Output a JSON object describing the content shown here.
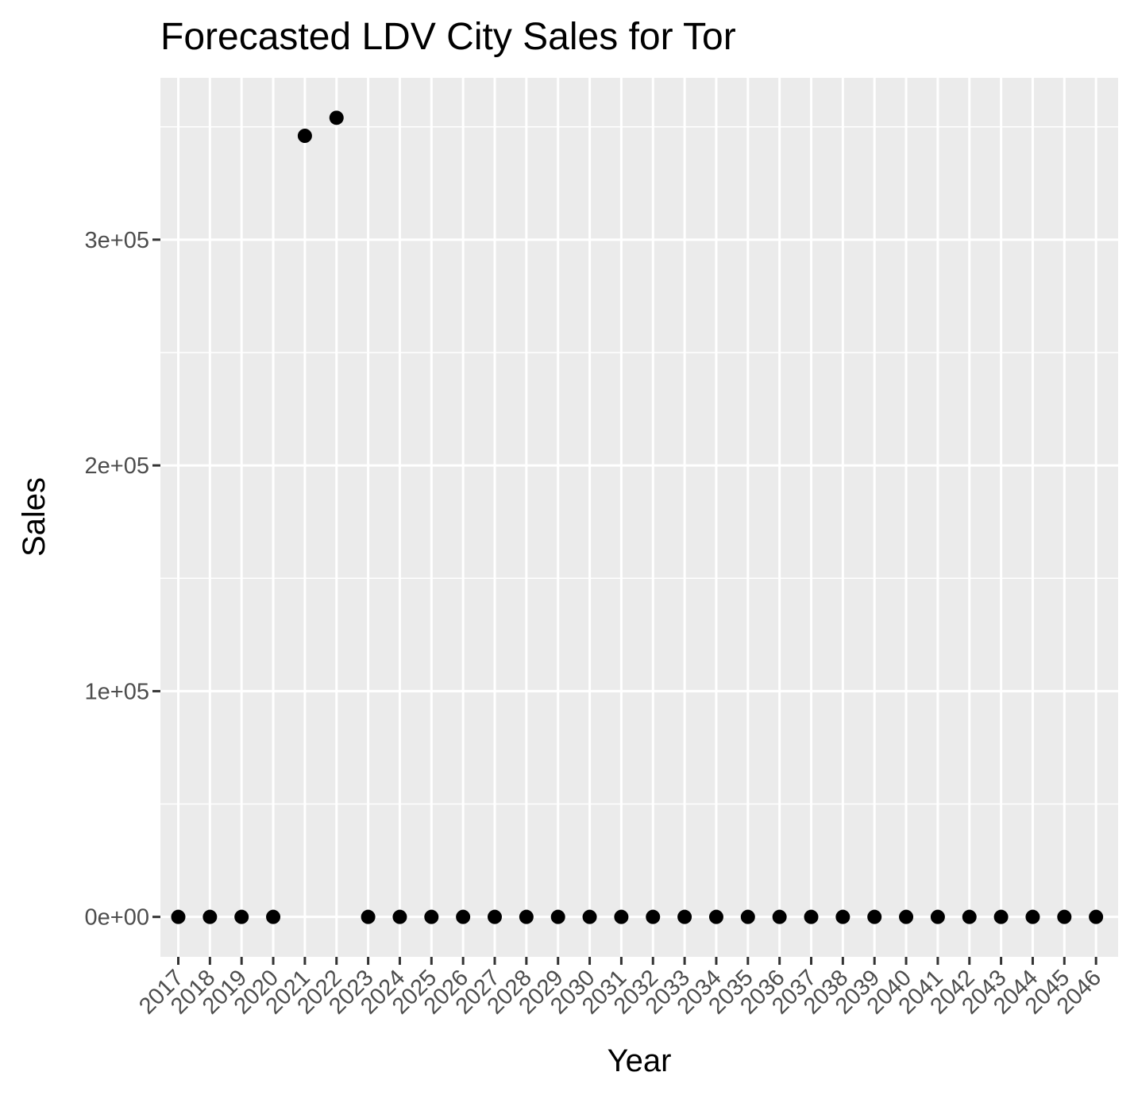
{
  "chart_data": {
    "type": "scatter",
    "title": "Forecasted LDV City Sales for Tor",
    "xlabel": "Year",
    "ylabel": "Sales",
    "x": [
      "2017",
      "2018",
      "2019",
      "2020",
      "2021",
      "2022",
      "2023",
      "2024",
      "2025",
      "2026",
      "2027",
      "2028",
      "2029",
      "2030",
      "2031",
      "2032",
      "2033",
      "2034",
      "2035",
      "2036",
      "2037",
      "2038",
      "2039",
      "2040",
      "2041",
      "2042",
      "2043",
      "2044",
      "2045",
      "2046"
    ],
    "y": [
      0,
      0,
      0,
      0,
      346000,
      354000,
      0,
      0,
      0,
      0,
      0,
      0,
      0,
      0,
      0,
      0,
      0,
      0,
      0,
      0,
      0,
      0,
      0,
      0,
      0,
      0,
      0,
      0,
      0,
      0
    ],
    "yticks": [
      0,
      100000,
      200000,
      300000
    ],
    "ytick_labels": [
      "0e+00",
      "1e+05",
      "2e+05",
      "3e+05"
    ],
    "ylim": [
      -17700,
      371700
    ],
    "grid": true,
    "legend": "none",
    "colors": {
      "panel": "#ebebeb",
      "grid": "#ffffff",
      "point": "#000000",
      "tick": "#333333",
      "tick_text": "#4d4d4d"
    }
  }
}
